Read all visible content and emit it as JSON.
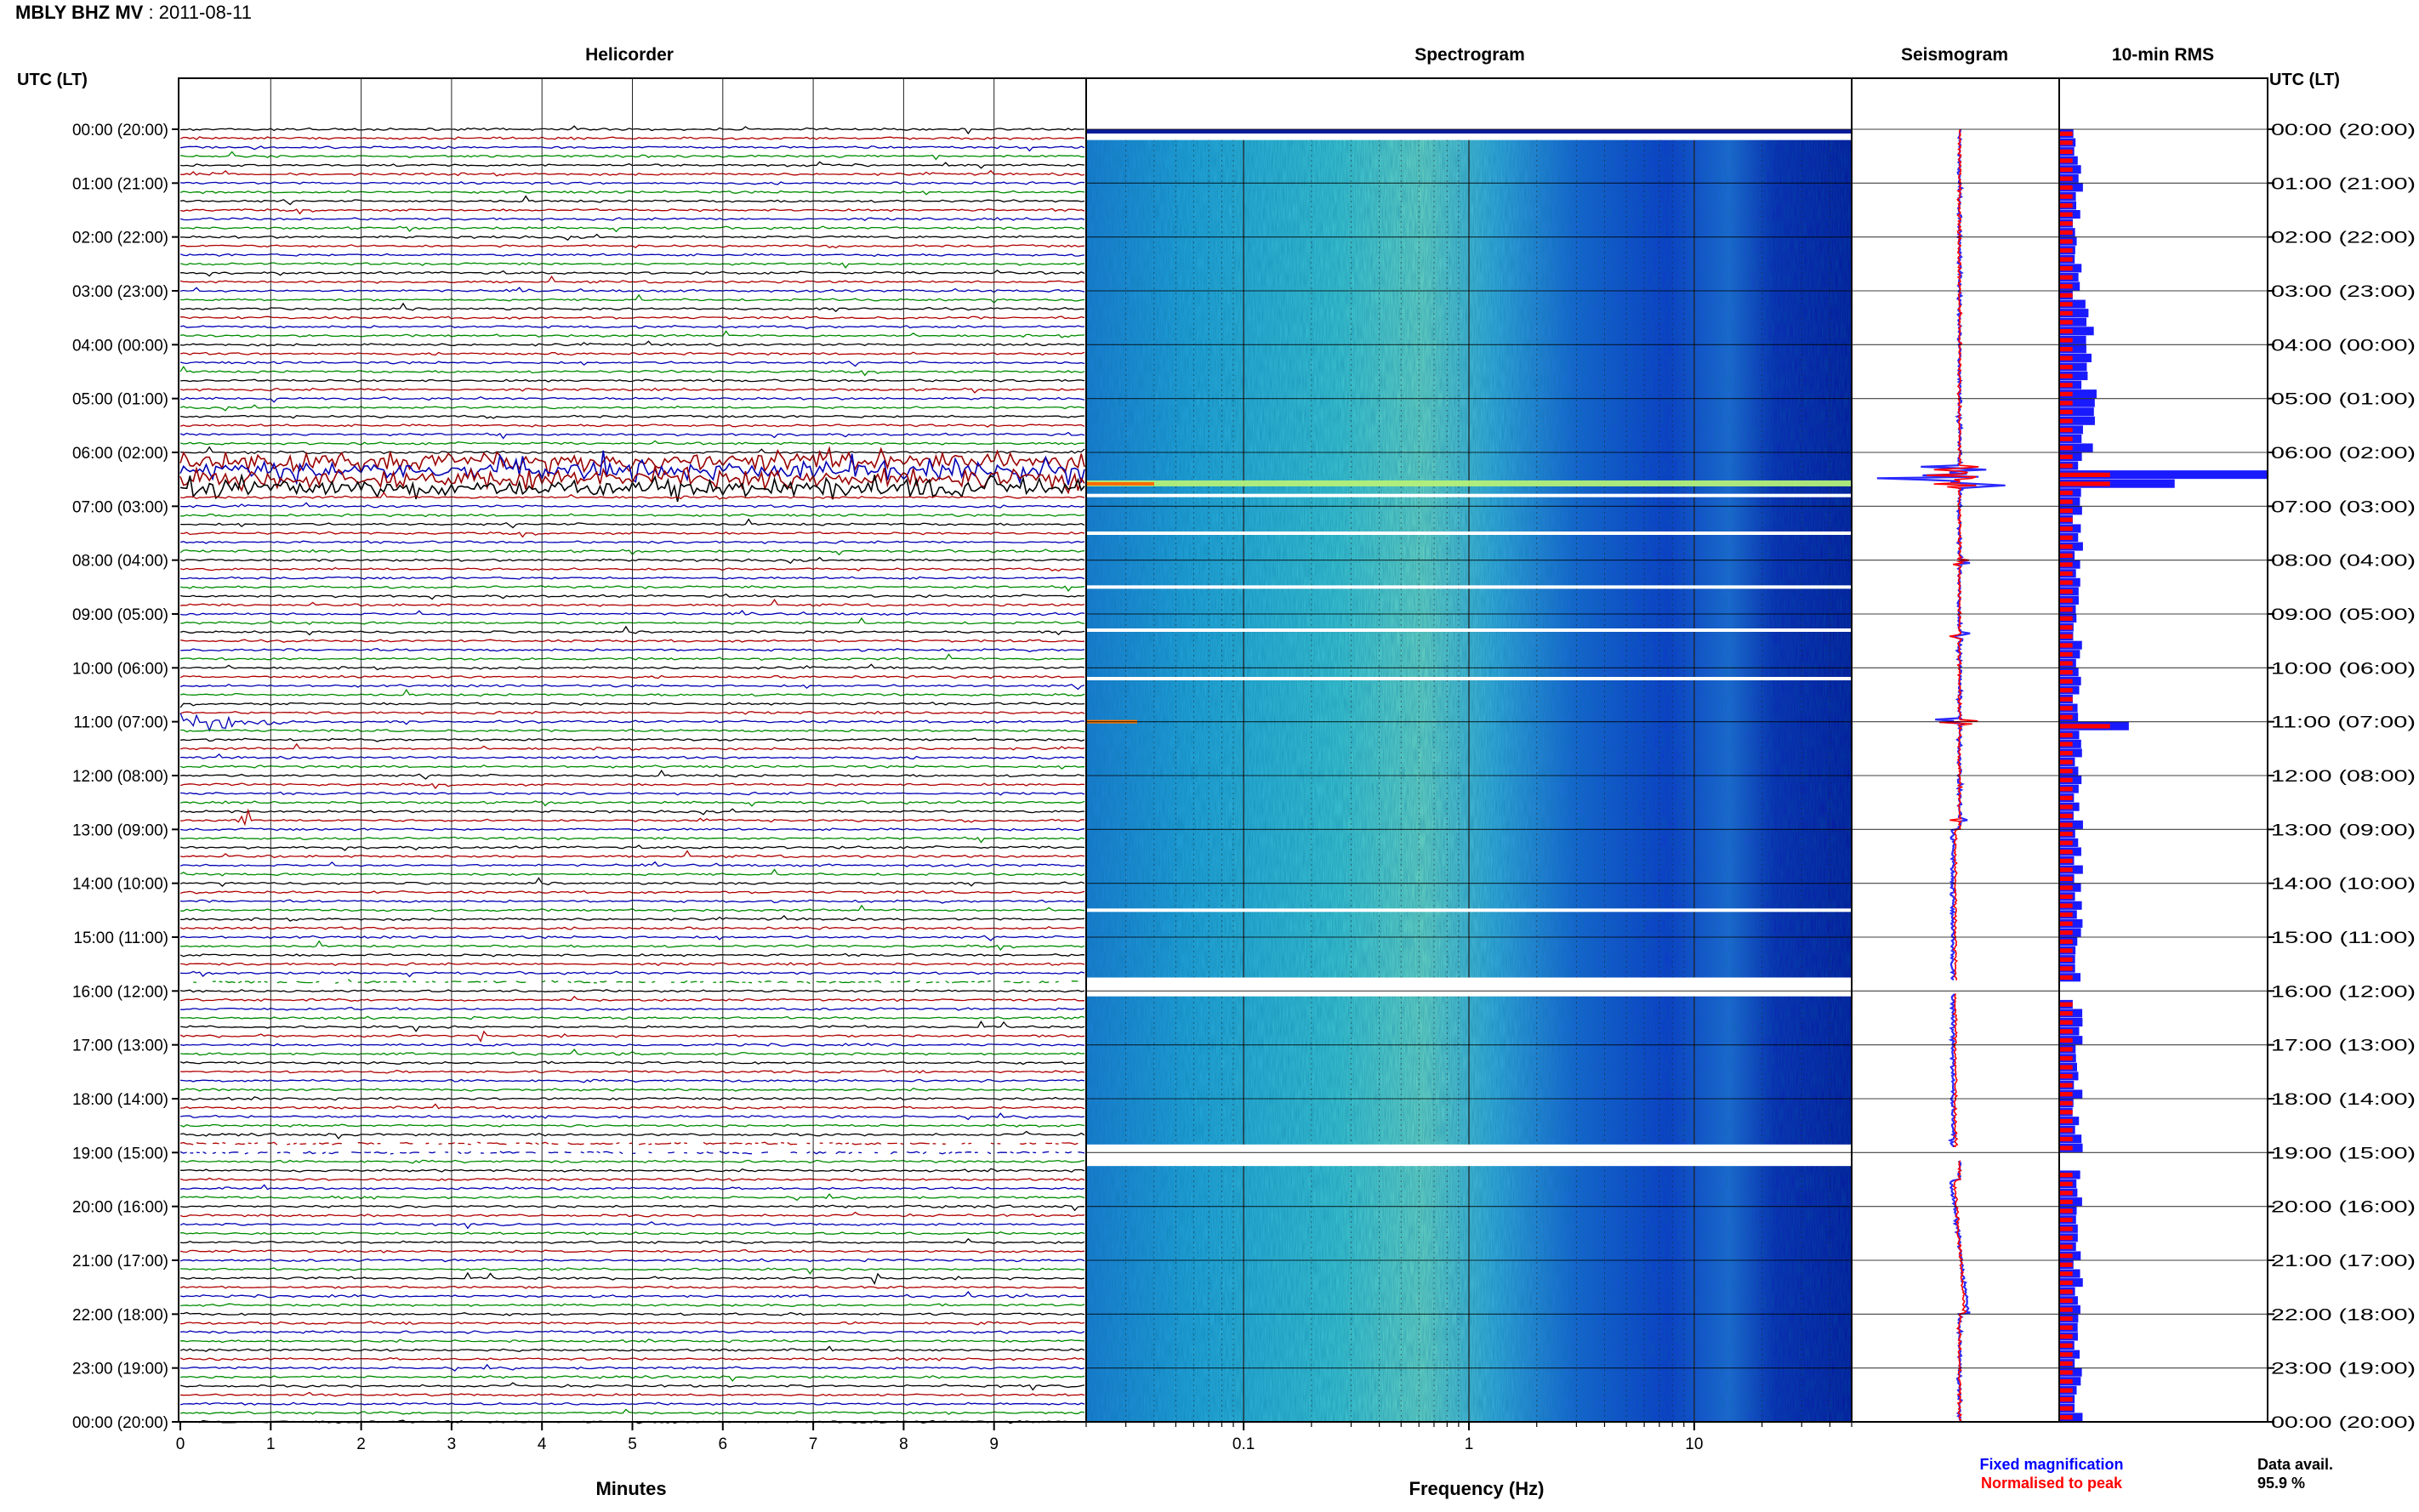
{
  "header": {
    "station": "MBLY BHZ MV",
    "separator": " : ",
    "date": "2011-08-11"
  },
  "panels": {
    "helicorder": "Helicorder",
    "spectrogram": "Spectrogram",
    "seismogram": "Seismogram",
    "rms": "10-min RMS"
  },
  "axes": {
    "left_header": "UTC (LT)",
    "right_header": "UTC (LT)",
    "x_helicorder": "Minutes",
    "x_spectrogram": "Frequency (Hz)"
  },
  "legend": {
    "fixed": "Fixed magnification",
    "normalised": "Normalised to peak"
  },
  "data_avail": {
    "label": "Data avail.",
    "value": "95.9 %"
  },
  "colors": {
    "trace_cycle": [
      "#000000",
      "#b00000",
      "#0000b4",
      "#008c00"
    ],
    "event_trace": "#990000",
    "rms_fixed": "#1a1aff",
    "rms_normalised": "#ff0000",
    "seis_fixed": "#2a2aff",
    "seis_normalised": "#ff0000",
    "legend_fixed": "#0000ff",
    "legend_normalised": "#ff0000",
    "spectro_low": "#0000a0",
    "spectro_high": "#ffff00"
  },
  "chart_data": [
    {
      "type": "line",
      "name": "helicorder",
      "title": "Helicorder",
      "xlabel": "Minutes",
      "xlim": [
        0,
        10
      ],
      "x_ticks": [
        0,
        1,
        2,
        3,
        4,
        5,
        6,
        7,
        8,
        9
      ],
      "y_tick_labels": [
        "00:00 (20:00)",
        "01:00 (21:00)",
        "02:00 (22:00)",
        "03:00 (23:00)",
        "04:00 (00:00)",
        "05:00 (01:00)",
        "06:00 (02:00)",
        "07:00 (03:00)",
        "08:00 (04:00)",
        "09:00 (05:00)",
        "10:00 (06:00)",
        "11:00 (07:00)",
        "12:00 (08:00)",
        "13:00 (09:00)",
        "14:00 (10:00)",
        "15:00 (11:00)",
        "16:00 (12:00)",
        "17:00 (13:00)",
        "18:00 (14:00)",
        "19:00 (15:00)",
        "20:00 (16:00)",
        "21:00 (17:00)",
        "22:00 (18:00)",
        "23:00 (19:00)",
        "00:00 (20:00)"
      ],
      "traces_per_hour": 6,
      "minutes_per_trace": 10,
      "grid": true,
      "notable_activity": [
        "06:00-07:00 UTC large-amplitude signals",
        "11:00 UTC event",
        "12:30 UTC events",
        "16:00 UTC data gap",
        "19:00 UTC data gap"
      ]
    },
    {
      "type": "heatmap",
      "name": "spectrogram",
      "title": "Spectrogram",
      "xlabel": "Frequency (Hz)",
      "x_scale": "log",
      "xlim": [
        0.02,
        50
      ],
      "x_tick_labels": [
        "0.1",
        "1",
        "10"
      ],
      "gaps_utc": [
        "16:00",
        "19:00"
      ],
      "bright_band_utc": "06:35"
    },
    {
      "type": "line",
      "name": "seismogram",
      "title": "Seismogram",
      "series": [
        {
          "name": "Fixed magnification"
        },
        {
          "name": "Normalised to peak"
        }
      ],
      "peak_events_utc": [
        "06:25",
        "11:00",
        "12:40"
      ]
    },
    {
      "type": "bar",
      "name": "rms",
      "title": "10-min RMS",
      "orientation": "horizontal",
      "bins_per_hour": 6,
      "series": [
        {
          "name": "Fixed magnification",
          "relative_peak_utc": "06:20"
        },
        {
          "name": "Normalised to peak"
        }
      ]
    }
  ]
}
